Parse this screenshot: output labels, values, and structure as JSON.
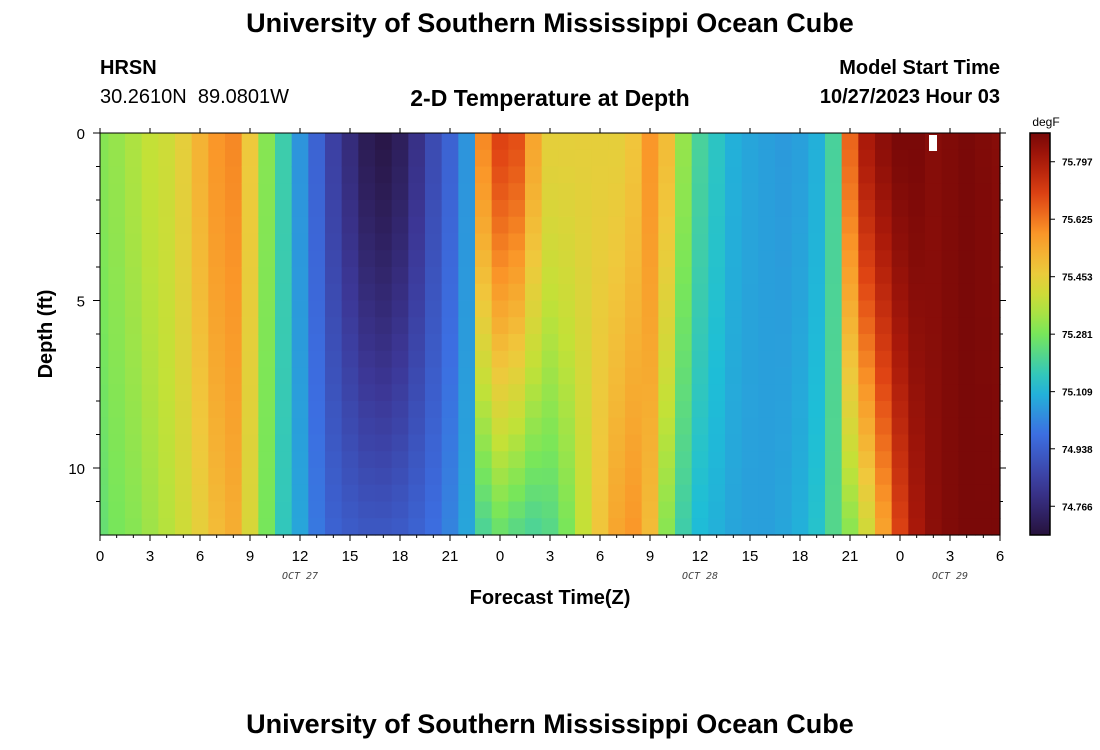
{
  "page": {
    "title_top": "University of Southern Mississippi Ocean Cube",
    "title_bottom": "University of Southern Mississippi Ocean Cube",
    "station": "HRSN",
    "coords": "30.2610N  89.0801W",
    "subtitle": "2-D Temperature at Depth",
    "start_label": "Model Start Time",
    "start_value": "10/27/2023 Hour 03"
  },
  "chart_data": {
    "type": "heatmap",
    "title": "2-D Temperature at Depth",
    "xlabel": "Forecast Time(Z)",
    "ylabel": "Depth (ft)",
    "x_unit": "hours since 10/27/2023 00Z",
    "xlim": [
      0,
      54
    ],
    "ylim": [
      0,
      12
    ],
    "y_inverted": true,
    "x_ticks": [
      0,
      3,
      6,
      9,
      12,
      15,
      18,
      21,
      24,
      27,
      30,
      33,
      36,
      39,
      42,
      45,
      48,
      51,
      54
    ],
    "x_tick_labels": [
      "0",
      "3",
      "6",
      "9",
      "12",
      "15",
      "18",
      "21",
      "0",
      "3",
      "6",
      "9",
      "12",
      "15",
      "18",
      "21",
      "0",
      "3",
      "6"
    ],
    "y_ticks": [
      0,
      5,
      10
    ],
    "y_tick_labels": [
      "0",
      "5",
      "10"
    ],
    "date_labels": [
      {
        "x": 12,
        "text": "OCT 27"
      },
      {
        "x": 36,
        "text": "OCT 28"
      },
      {
        "x": 51,
        "text": "OCT 29"
      }
    ],
    "colorbar": {
      "unit": "degF",
      "min": 74.68,
      "max": 75.883,
      "tick_values": [
        75.797,
        75.625,
        75.453,
        75.281,
        75.109,
        74.938,
        74.766
      ],
      "tick_labels": [
        "75.797",
        "75.625",
        "75.453",
        "75.281",
        "75.109",
        "74.938",
        "74.766"
      ]
    },
    "profile_hours": [
      0,
      1,
      2,
      3,
      4,
      5,
      6,
      7,
      8,
      9,
      10,
      11,
      12,
      13,
      14,
      15,
      16,
      17,
      18,
      19,
      20,
      21,
      22,
      23,
      24,
      25,
      26,
      27,
      28,
      29,
      30,
      31,
      32,
      33,
      34,
      35,
      36,
      37,
      38,
      39,
      40,
      41,
      42,
      43,
      44,
      45,
      46,
      47,
      48,
      49,
      50,
      51,
      52,
      53,
      54
    ],
    "temp_surface": [
      75.3,
      75.32,
      75.35,
      75.38,
      75.4,
      75.45,
      75.52,
      75.58,
      75.6,
      75.47,
      75.3,
      75.18,
      75.05,
      74.95,
      74.85,
      74.78,
      74.72,
      74.7,
      74.73,
      74.8,
      74.88,
      74.95,
      75.05,
      75.6,
      75.7,
      75.68,
      75.55,
      75.45,
      75.45,
      75.45,
      75.45,
      75.45,
      75.48,
      75.58,
      75.5,
      75.32,
      75.2,
      75.15,
      75.1,
      75.08,
      75.07,
      75.06,
      75.07,
      75.1,
      75.2,
      75.65,
      75.8,
      75.85,
      75.88,
      75.88,
      75.86,
      75.87,
      75.88,
      75.87,
      75.86
    ],
    "temp_bottom": [
      75.25,
      75.28,
      75.3,
      75.33,
      75.36,
      75.4,
      75.45,
      75.5,
      75.53,
      75.42,
      75.28,
      75.16,
      75.08,
      75.0,
      74.95,
      74.93,
      74.92,
      74.92,
      74.93,
      74.95,
      74.98,
      75.02,
      75.08,
      75.2,
      75.25,
      75.22,
      75.2,
      75.22,
      75.28,
      75.38,
      75.48,
      75.55,
      75.58,
      75.5,
      75.3,
      75.18,
      75.12,
      75.1,
      75.08,
      75.07,
      75.07,
      75.08,
      75.1,
      75.14,
      75.22,
      75.3,
      75.4,
      75.55,
      75.7,
      75.8,
      75.85,
      75.87,
      75.88,
      75.88,
      75.88
    ]
  }
}
